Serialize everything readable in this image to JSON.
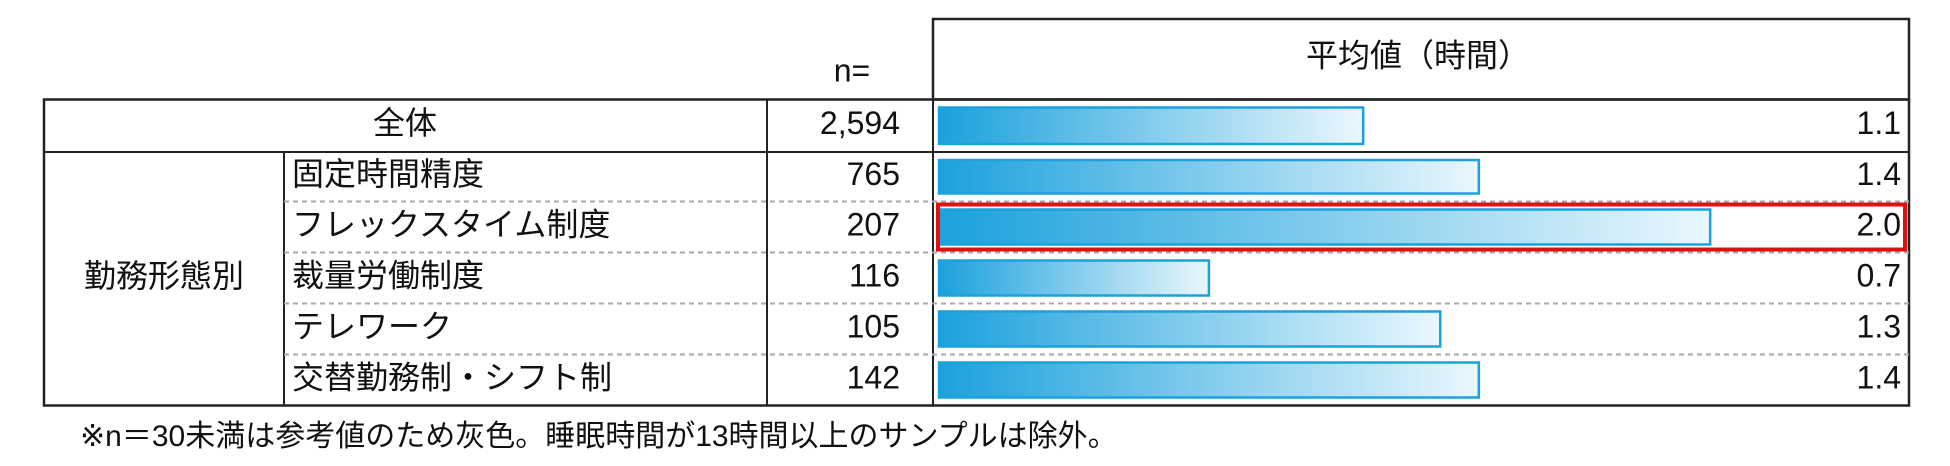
{
  "chart_data": {
    "type": "bar",
    "n_header": "n=",
    "x_label": "平均値（時間）",
    "group_label": "勤務形態別",
    "categories": [
      "全体",
      "固定時間精度",
      "フレックスタイム制度",
      "裁量労働制度",
      "テレワーク",
      "交替勤務制・シフト制"
    ],
    "n": [
      "2,594",
      "765",
      "207",
      "116",
      "105",
      "142"
    ],
    "values": [
      1.1,
      1.4,
      2.0,
      0.7,
      1.3,
      1.4
    ],
    "value_labels": [
      "1.1",
      "1.4",
      "2.0",
      "0.7",
      "1.3",
      "1.4"
    ],
    "xlim": [
      0,
      2.5
    ],
    "color": "#1ba1dc",
    "highlight_index": 2,
    "highlight_color": "#e01010",
    "note": "※n＝30未満は参考値のため灰色。睡眠時間が13時間以上のサンプルは除外。"
  }
}
